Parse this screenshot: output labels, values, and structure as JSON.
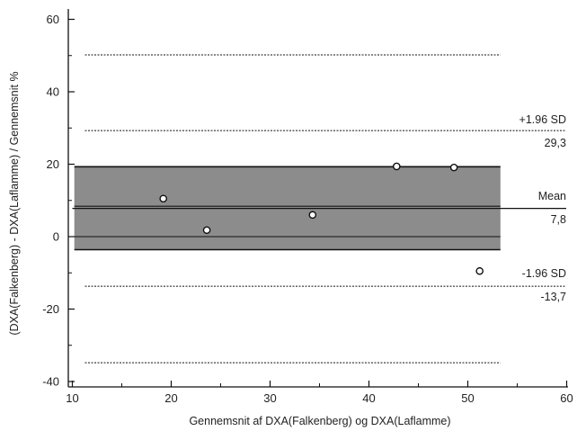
{
  "chart_data": {
    "type": "scatter",
    "title": "",
    "xlabel": "Gennemsnit af DXA(Falkenberg) og DXA(Laflamme)",
    "ylabel": "(DXA(Falkenberg) - DXA(Laflamme) / Gennemsnit %",
    "xlim": [
      10,
      60
    ],
    "ylim": [
      -42,
      62
    ],
    "x_ticks": [
      10,
      20,
      30,
      40,
      50,
      60
    ],
    "y_ticks": [
      60,
      40,
      20,
      0,
      -20,
      -40
    ],
    "grid": false,
    "points": [
      {
        "x": 19.2,
        "y": 10.5
      },
      {
        "x": 23.6,
        "y": 1.8
      },
      {
        "x": 34.3,
        "y": 6.0
      },
      {
        "x": 42.8,
        "y": 19.4
      },
      {
        "x": 48.6,
        "y": 19.1
      },
      {
        "x": 51.2,
        "y": -9.5
      }
    ],
    "reference_lines": {
      "mean": {
        "label": "Mean",
        "value_label": "7,8",
        "value": 7.8
      },
      "upper_loa": {
        "label": "+1.96 SD",
        "value_label": "29,3",
        "value": 29.3
      },
      "lower_loa": {
        "label": "-1.96 SD",
        "value_label": "-13,7",
        "value": -13.7
      },
      "outer_upper": {
        "value": 50.2
      },
      "outer_lower": {
        "value": -34.8
      }
    },
    "confidence_band": {
      "lower": -3.6,
      "upper": 19.3,
      "x_range": [
        10.2,
        53.3
      ],
      "color": "#8c8c8c"
    },
    "inner_lines": [
      8.4,
      0.0
    ]
  }
}
